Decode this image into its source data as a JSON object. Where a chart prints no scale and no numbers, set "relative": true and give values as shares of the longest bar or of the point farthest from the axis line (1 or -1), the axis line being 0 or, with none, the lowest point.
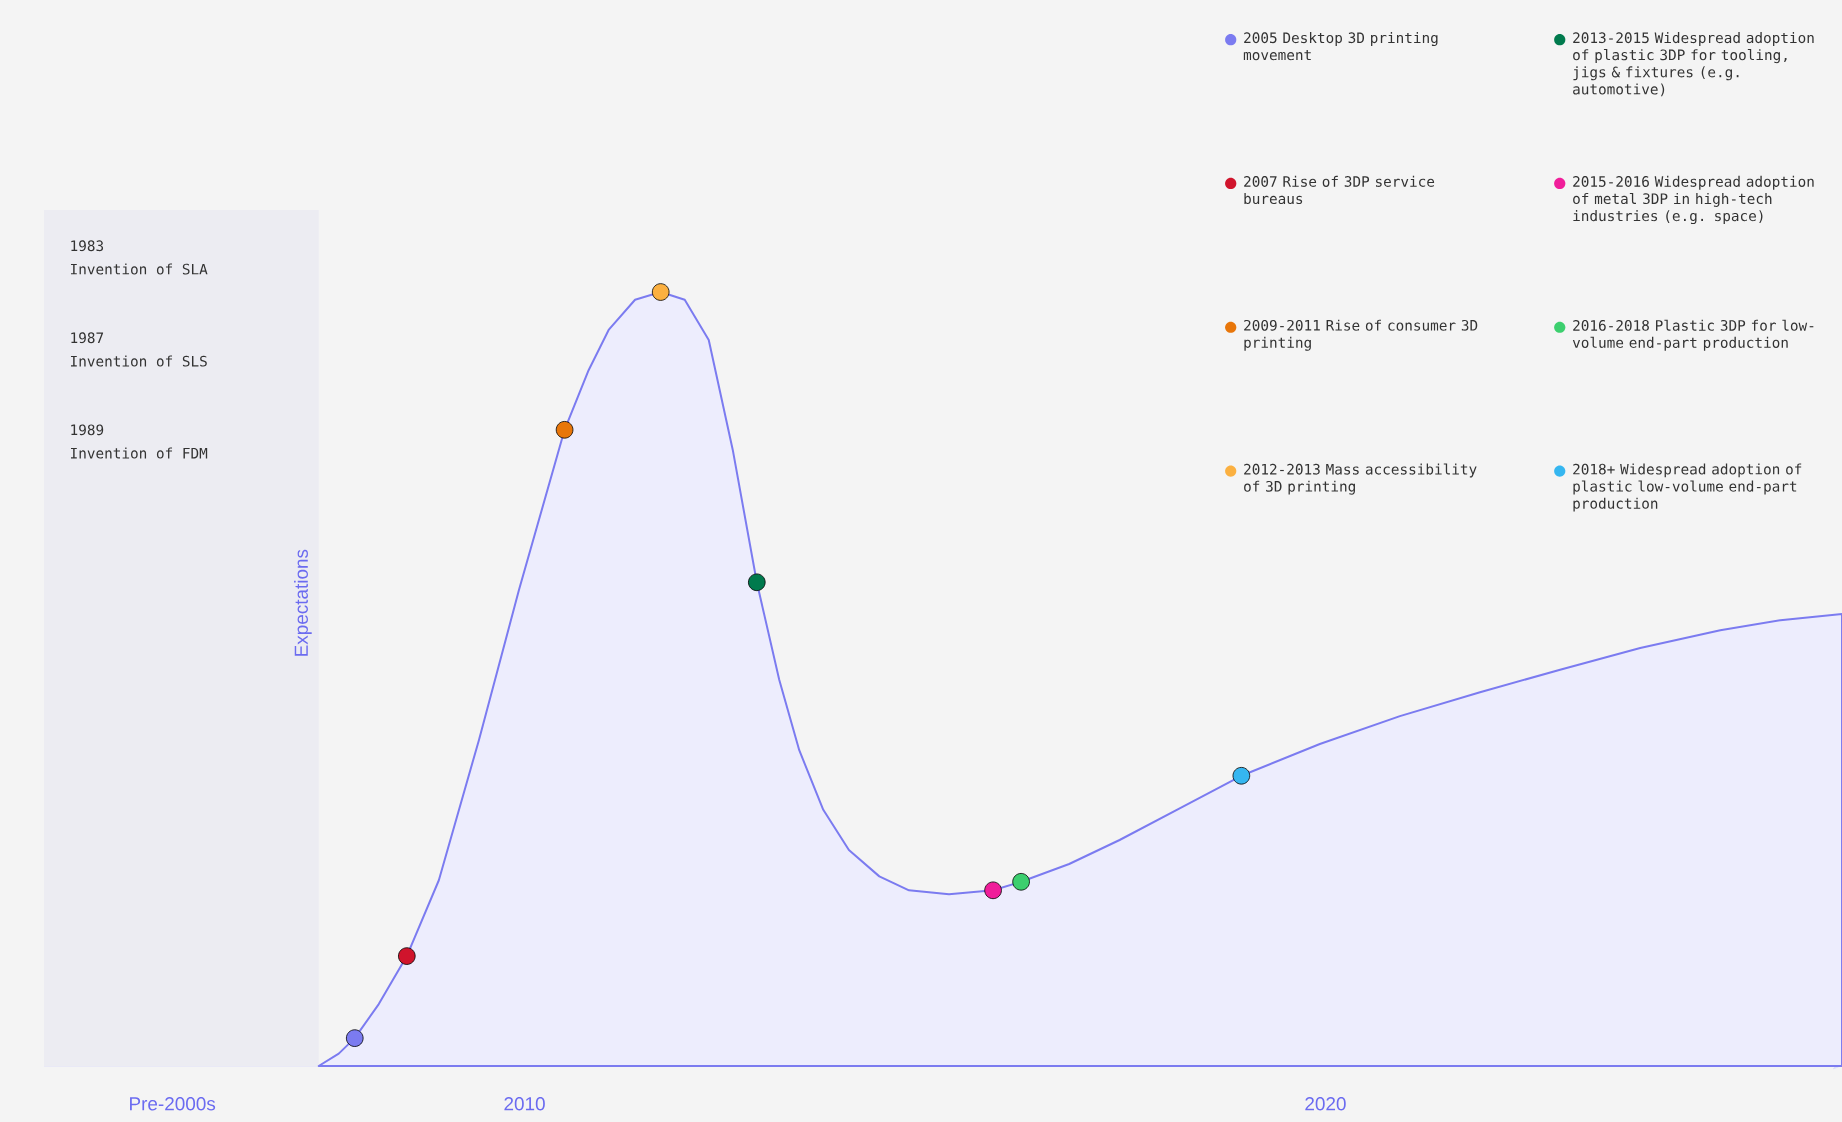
{
  "chart_data": {
    "type": "area",
    "relative": true,
    "ylabel": "Expectations",
    "tick_labels": "x",
    "legend": "top right",
    "xlim": [
      2004,
      2026.45
    ],
    "xticks": [
      {
        "value": 2005.6,
        "label": "Pre-2000s"
      },
      2010,
      2020
    ],
    "bands": [
      {
        "axis": "x",
        "from": 2004,
        "to": 2007.43,
        "color": "#ececf2"
      }
    ],
    "annotations": [
      "1983",
      "Invention of SLA",
      "1987",
      "Invention of SLS",
      "1989",
      "Invention of FDM"
    ],
    "series": [
      {
        "color": "#7b7bf0",
        "x": [
          2007.43,
          2007.68,
          2007.88,
          2008.18,
          2008.53,
          2008.93,
          2009.43,
          2009.93,
          2010.5,
          2010.8,
          2011.05,
          2011.38,
          2011.7,
          2012.0,
          2012.3,
          2012.6,
          2012.9,
          2013.18,
          2013.43,
          2013.73,
          2014.05,
          2014.43,
          2014.8,
          2015.3,
          2015.85,
          2016.2,
          2016.8,
          2017.43,
          2018.18,
          2018.95,
          2019.93,
          2020.93,
          2021.93,
          2022.93,
          2023.93,
          2024.93,
          2025.68,
          2026.45
        ],
        "values": [
          0,
          0.016,
          0.036,
          0.08,
          0.142,
          0.24,
          0.421,
          0.615,
          0.822,
          0.899,
          0.951,
          0.99,
          1.0,
          0.99,
          0.938,
          0.796,
          0.625,
          0.499,
          0.408,
          0.331,
          0.279,
          0.245,
          0.227,
          0.222,
          0.227,
          0.238,
          0.261,
          0.292,
          0.333,
          0.375,
          0.416,
          0.452,
          0.483,
          0.512,
          0.54,
          0.563,
          0.576,
          0.584
        ]
      },
      {
        "type": "scatter",
        "name": "2005 Desktop 3D printing movement",
        "color": "#7b7bf0",
        "x": [
          2007.88
        ],
        "values": [
          0.036
        ]
      },
      {
        "type": "scatter",
        "name": "2007 Rise of 3DP service bureaus",
        "color": "#d0142c",
        "x": [
          2008.53
        ],
        "values": [
          0.142
        ]
      },
      {
        "type": "scatter",
        "name": "2009-2011 Rise of consumer 3D printing",
        "color": "#e8760a",
        "x": [
          2010.5
        ],
        "values": [
          0.822
        ]
      },
      {
        "type": "scatter",
        "name": "2012-2013 Mass accessibility of 3D printing",
        "color": "#fbb040",
        "x": [
          2011.7
        ],
        "values": [
          1.0
        ]
      },
      {
        "type": "scatter",
        "name": "2013-2015 Widespread adoption of plastic 3DP for tooling, jigs & fixtures (e.g. automotive)",
        "color": "#007a4d",
        "x": [
          2012.9
        ],
        "values": [
          0.625
        ]
      },
      {
        "type": "scatter",
        "name": "2015-2016 Widespread adoption of metal 3DP in high-tech industries (e.g. space)",
        "color": "#f01e9a",
        "x": [
          2015.85
        ],
        "values": [
          0.227
        ]
      },
      {
        "type": "scatter",
        "name": "2016-2018 Plastic 3DP for low-volume end-part production",
        "color": "#3ccf6e",
        "x": [
          2016.2
        ],
        "values": [
          0.238
        ]
      },
      {
        "type": "scatter",
        "name": "2018+ Widespread adoption of plastic low-volume end-part production",
        "color": "#35b6f0",
        "x": [
          2018.95
        ],
        "values": [
          0.375
        ]
      }
    ]
  }
}
